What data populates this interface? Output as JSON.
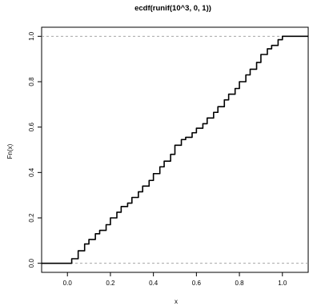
{
  "chart_data": {
    "type": "line",
    "title": "ecdf(runif(10^3, 0, 1))",
    "xlabel": "x",
    "ylabel": "Fn(x)",
    "xlim": [
      -0.12,
      1.12
    ],
    "ylim": [
      -0.04,
      1.04
    ],
    "x_ticks": [
      0.0,
      0.2,
      0.4,
      0.6,
      0.8,
      1.0
    ],
    "x_tick_labels": [
      "0.0",
      "0.2",
      "0.4",
      "0.6",
      "0.8",
      "1.0"
    ],
    "y_ticks": [
      0.0,
      0.2,
      0.4,
      0.6,
      0.8,
      1.0
    ],
    "y_tick_labels": [
      "0.0",
      "0.2",
      "0.4",
      "0.6",
      "0.8",
      "1.0"
    ],
    "reference_lines_y": [
      0,
      1
    ],
    "reference_line_style": "dashed gray",
    "grid": false,
    "series": [
      {
        "x": [
          -0.12,
          0.0,
          0.02,
          0.05,
          0.08,
          0.1,
          0.13,
          0.15,
          0.18,
          0.2,
          0.23,
          0.25,
          0.28,
          0.3,
          0.33,
          0.35,
          0.38,
          0.4,
          0.43,
          0.45,
          0.48,
          0.5,
          0.53,
          0.55,
          0.58,
          0.6,
          0.63,
          0.65,
          0.68,
          0.7,
          0.73,
          0.75,
          0.78,
          0.8,
          0.83,
          0.85,
          0.88,
          0.9,
          0.93,
          0.95,
          0.98,
          1.0,
          1.12
        ],
        "y": [
          0.0,
          0.0,
          0.02,
          0.055,
          0.085,
          0.105,
          0.13,
          0.145,
          0.17,
          0.2,
          0.225,
          0.25,
          0.265,
          0.29,
          0.315,
          0.34,
          0.365,
          0.395,
          0.425,
          0.45,
          0.48,
          0.52,
          0.545,
          0.555,
          0.575,
          0.595,
          0.615,
          0.64,
          0.665,
          0.69,
          0.72,
          0.745,
          0.77,
          0.8,
          0.83,
          0.855,
          0.885,
          0.92,
          0.945,
          0.96,
          0.985,
          1.0,
          1.0
        ]
      }
    ]
  }
}
